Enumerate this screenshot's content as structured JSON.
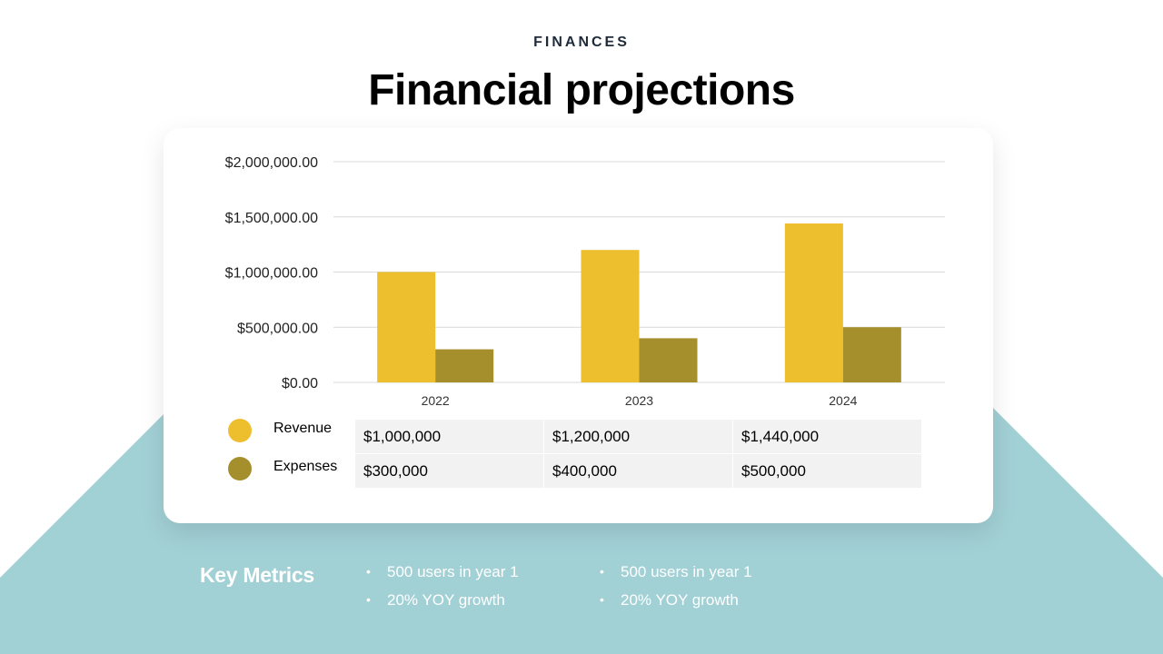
{
  "header": {
    "eyebrow": "FINANCES",
    "title": "Financial projections"
  },
  "colors": {
    "revenue": "#EDBE2D",
    "expenses": "#A58E2C",
    "background_shape": "#A1D0D5",
    "gridline": "#d9d9d9"
  },
  "chart_data": {
    "type": "bar",
    "categories": [
      "2022",
      "2023",
      "2024"
    ],
    "series": [
      {
        "name": "Revenue",
        "values": [
          1000000,
          1200000,
          1440000
        ],
        "color": "#EDBE2D"
      },
      {
        "name": "Expenses",
        "values": [
          300000,
          400000,
          500000
        ],
        "color": "#A58E2C"
      }
    ],
    "ylim": [
      0,
      2000000
    ],
    "yticks": [
      0,
      500000,
      1000000,
      1500000,
      2000000
    ],
    "ytick_labels": [
      "$0.00",
      "$500,000.00",
      "$1,000,000.00",
      "$1,500,000.00",
      "$2,000,000.00"
    ],
    "grid": true,
    "legend": "bottom-left (data table legend)"
  },
  "data_table": {
    "legend": [
      {
        "label": "Revenue",
        "color": "#EDBE2D"
      },
      {
        "label": "Expenses",
        "color": "#A58E2C"
      }
    ],
    "rows": [
      [
        "$1,000,000",
        "$1,200,000",
        "$1,440,000"
      ],
      [
        "$300,000",
        "$400,000",
        "$500,000"
      ]
    ]
  },
  "metrics": {
    "title": "Key Metrics",
    "column1": [
      "500 users in year 1",
      "20% YOY growth"
    ],
    "column2": [
      "500 users in year 1",
      "20% YOY growth"
    ]
  }
}
